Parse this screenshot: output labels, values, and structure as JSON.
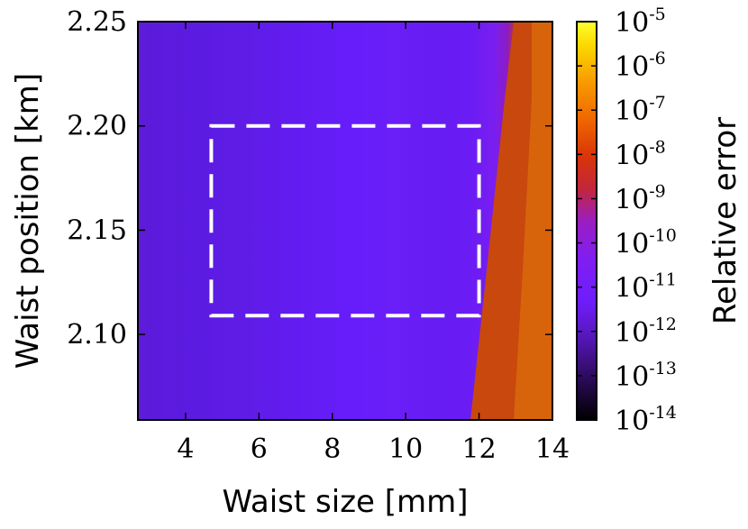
{
  "chart_data": {
    "type": "heatmap",
    "title": "",
    "xlabel": "Waist size [mm]",
    "ylabel": "Waist position [km]",
    "xlim": [
      2.7,
      14
    ],
    "ylim": [
      2.059,
      2.25
    ],
    "x_ticks": [
      {
        "value": 4,
        "label": "4"
      },
      {
        "value": 6,
        "label": "6"
      },
      {
        "value": 8,
        "label": "8"
      },
      {
        "value": 10,
        "label": "10"
      },
      {
        "value": 12,
        "label": "12"
      },
      {
        "value": 14,
        "label": "14"
      }
    ],
    "y_ticks": [
      {
        "value": 2.1,
        "label": "2.10"
      },
      {
        "value": 2.15,
        "label": "2.15"
      },
      {
        "value": 2.2,
        "label": "2.20"
      },
      {
        "value": 2.25,
        "label": "2.25"
      }
    ],
    "colorbar": {
      "label": "Relative error",
      "scale": "log",
      "range": [
        1e-14,
        1e-05
      ],
      "ticks": [
        {
          "base": "10",
          "exp": "-14"
        },
        {
          "base": "10",
          "exp": "-13"
        },
        {
          "base": "10",
          "exp": "-12"
        },
        {
          "base": "10",
          "exp": "-11"
        },
        {
          "base": "10",
          "exp": "-10"
        },
        {
          "base": "10",
          "exp": "-9"
        },
        {
          "base": "10",
          "exp": "-8"
        },
        {
          "base": "10",
          "exp": "-7"
        },
        {
          "base": "10",
          "exp": "-6"
        },
        {
          "base": "10",
          "exp": "-5"
        }
      ],
      "colormap_stops": [
        "#000000",
        "#3a0a6e",
        "#6f1dfc",
        "#9b1ec0",
        "#d2261a",
        "#f57d00",
        "#fad000",
        "#ffff30"
      ]
    },
    "regions": [
      {
        "description_level": "low",
        "x_range": [
          2.7,
          12.3
        ],
        "log10_error_approx": -12.2
      },
      {
        "description_level": "high",
        "x_range": [
          12.3,
          14
        ],
        "log10_error_approx": -6.8
      }
    ],
    "highlight_box": {
      "x": [
        4.7,
        12.0
      ],
      "y": [
        2.109,
        2.2
      ],
      "style": "dashed",
      "color": "#ffffff"
    }
  }
}
